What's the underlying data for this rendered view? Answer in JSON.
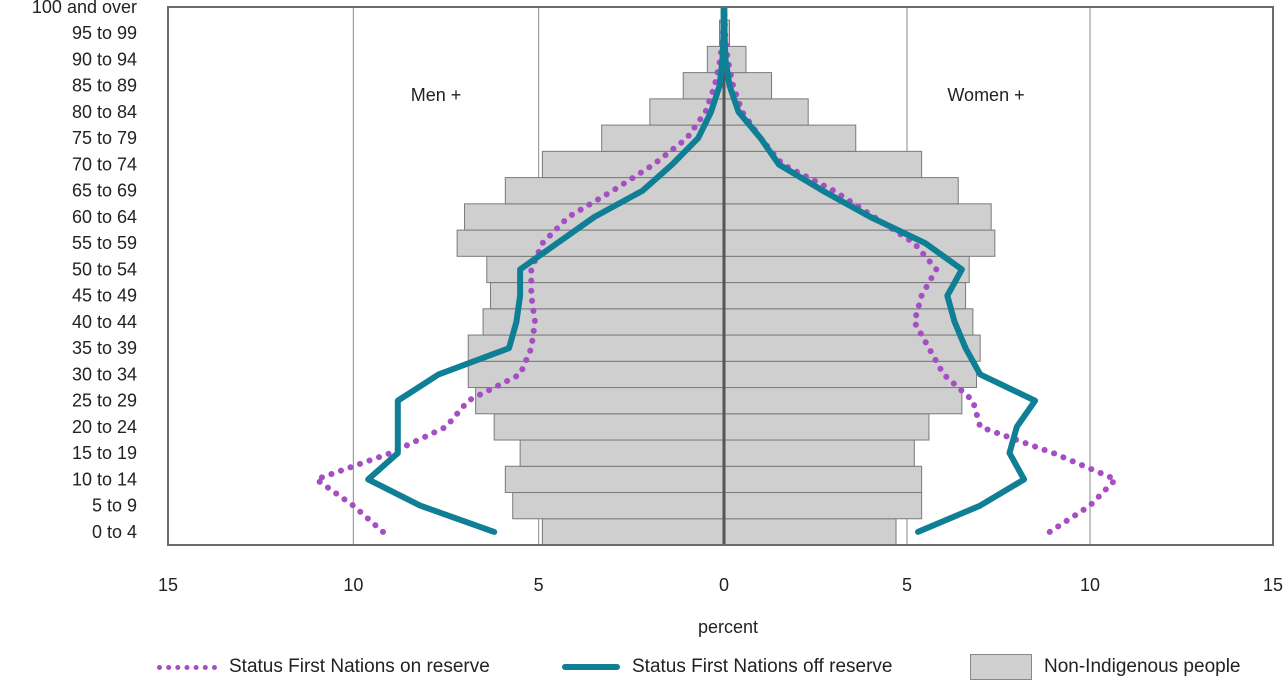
{
  "chart_data": {
    "type": "bar",
    "subtype": "population-pyramid",
    "xlabel": "percent",
    "xlim": [
      -15,
      15
    ],
    "x_ticks": [
      "15",
      "10",
      "5",
      "0",
      "5",
      "10",
      "15"
    ],
    "x_tick_values": [
      -15,
      -10,
      -5,
      0,
      5,
      10,
      15
    ],
    "categories": [
      "0 to 4",
      "5 to 9",
      "10 to 14",
      "15 to 19",
      "20 to 24",
      "25 to 29",
      "30 to 34",
      "35 to 39",
      "40 to 44",
      "45 to 49",
      "50 to 54",
      "55 to 59",
      "60 to 64",
      "65 to 69",
      "70 to 74",
      "75 to 79",
      "80 to 84",
      "85 to 89",
      "90 to 94",
      "95 to 99",
      "100 and over"
    ],
    "annotations": {
      "men": "Men +",
      "women": "Women +"
    },
    "grid": "vertical",
    "legend_position": "bottom",
    "series": [
      {
        "name": "Non-Indigenous people",
        "style": "bar",
        "color": "#cfcfcf",
        "men": [
          4.9,
          5.7,
          5.9,
          5.5,
          6.2,
          6.7,
          6.9,
          6.9,
          6.5,
          6.3,
          6.4,
          7.2,
          7.0,
          5.9,
          4.9,
          3.3,
          2.0,
          1.1,
          0.45,
          0.12,
          0.03
        ],
        "women": [
          4.7,
          5.4,
          5.4,
          5.2,
          5.6,
          6.5,
          6.9,
          7.0,
          6.8,
          6.6,
          6.7,
          7.4,
          7.3,
          6.4,
          5.4,
          3.6,
          2.3,
          1.3,
          0.6,
          0.15,
          0.04
        ]
      },
      {
        "name": "Status First Nations on reserve",
        "style": "dotted",
        "color": "#a64fc4",
        "men": [
          9.2,
          10.0,
          11.0,
          9.0,
          7.5,
          6.9,
          5.5,
          5.2,
          5.1,
          5.2,
          5.2,
          4.9,
          4.2,
          3.0,
          1.9,
          1.0,
          0.5,
          0.25,
          0.1,
          0.03,
          0.01
        ],
        "women": [
          8.9,
          10.0,
          10.7,
          9.0,
          7.0,
          6.8,
          6.0,
          5.6,
          5.2,
          5.4,
          5.8,
          5.2,
          4.1,
          3.0,
          1.6,
          1.0,
          0.5,
          0.25,
          0.1,
          0.03,
          0.01
        ]
      },
      {
        "name": "Status First Nations off reserve",
        "style": "solid",
        "color": "#0e7f94",
        "men": [
          6.2,
          8.2,
          9.6,
          8.8,
          8.8,
          8.8,
          7.7,
          5.8,
          5.6,
          5.5,
          5.5,
          4.5,
          3.5,
          2.2,
          1.4,
          0.7,
          0.35,
          0.12,
          0.04,
          0.01,
          0.01
        ],
        "women": [
          5.3,
          7.0,
          8.2,
          7.8,
          8.0,
          8.5,
          7.0,
          6.6,
          6.3,
          6.1,
          6.5,
          5.5,
          4.0,
          2.7,
          1.5,
          1.0,
          0.4,
          0.15,
          0.04,
          0.01,
          0.01
        ]
      }
    ]
  }
}
